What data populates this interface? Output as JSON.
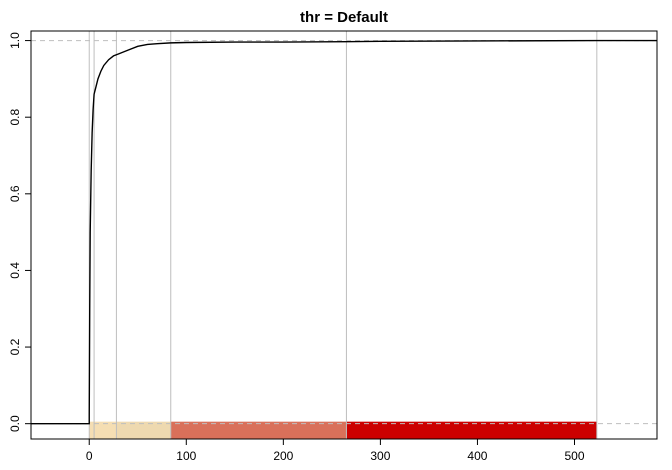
{
  "chart_data": {
    "type": "line",
    "title": "thr = Default",
    "xlabel": "",
    "ylabel": "",
    "xlim": [
      -60,
      585
    ],
    "ylim": [
      -0.04,
      1.025
    ],
    "x_ticks": [
      0,
      100,
      200,
      300,
      400,
      500
    ],
    "x_tick_labels": [
      "0",
      "100",
      "200",
      "300",
      "400",
      "500"
    ],
    "y_ticks": [
      0.0,
      0.2,
      0.4,
      0.6,
      0.8,
      1.0
    ],
    "y_tick_labels": [
      "0.0",
      "0.2",
      "0.4",
      "0.6",
      "0.8",
      "1.0"
    ],
    "grid": false,
    "reference_lines_h": [
      0,
      1
    ],
    "threshold_lines_x": [
      0,
      5,
      28,
      84,
      265,
      523
    ],
    "series": [
      {
        "color": "#000000",
        "points": [
          [
            -60,
            0
          ],
          [
            0,
            0
          ],
          [
            0,
            0.02
          ],
          [
            0.5,
            0.3
          ],
          [
            1,
            0.5
          ],
          [
            2,
            0.66
          ],
          [
            3,
            0.76
          ],
          [
            4,
            0.82
          ],
          [
            5,
            0.86
          ],
          [
            7,
            0.88
          ],
          [
            9,
            0.9
          ],
          [
            12,
            0.92
          ],
          [
            15,
            0.935
          ],
          [
            20,
            0.95
          ],
          [
            25,
            0.96
          ],
          [
            30,
            0.965
          ],
          [
            40,
            0.975
          ],
          [
            50,
            0.985
          ],
          [
            60,
            0.99
          ],
          [
            70,
            0.992
          ],
          [
            84,
            0.994
          ],
          [
            100,
            0.995
          ],
          [
            150,
            0.996
          ],
          [
            200,
            0.996
          ],
          [
            265,
            0.997
          ],
          [
            300,
            0.998
          ],
          [
            400,
            0.999
          ],
          [
            523,
            1.0
          ],
          [
            585,
            1.0
          ]
        ]
      }
    ],
    "bands": [
      {
        "from": 0,
        "to": 28,
        "color": "#f5deb3"
      },
      {
        "from": 28,
        "to": 84,
        "color": "#eed9b0"
      },
      {
        "from": 84,
        "to": 265,
        "color": "#d9705a"
      },
      {
        "from": 265,
        "to": 523,
        "color": "#cc0000"
      }
    ]
  }
}
